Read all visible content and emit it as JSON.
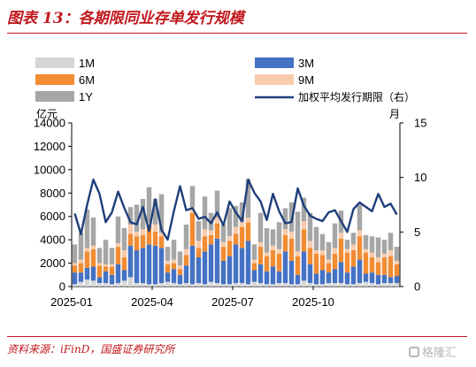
{
  "header": {
    "title": "图表 13：各期限同业存单发行规模"
  },
  "footer": {
    "source": "资料来源：iFinD，国盛证券研究所",
    "watermark": "格隆汇"
  },
  "colors": {
    "1M": "#d6d6d6",
    "3M": "#4472c4",
    "6M": "#f28c33",
    "9M": "#f8cbad",
    "1Y": "#a6a6a6",
    "line": "#1f3f7a",
    "title": "#c0171d"
  },
  "chart_data": {
    "type": "bar",
    "stacked": true,
    "left_axis_unit": "亿元",
    "right_axis_unit": "月",
    "ylim": [
      0,
      14000
    ],
    "ylim_right": [
      0,
      15
    ],
    "y_ticks": [
      "0",
      "2000",
      "4000",
      "6000",
      "8000",
      "10000",
      "12000",
      "14000"
    ],
    "y_right_ticks": [
      "0",
      "5",
      "10",
      "15"
    ],
    "x_tick_labels": [
      "2025-01",
      "2025-04",
      "2025-07",
      "2025-10"
    ],
    "x_tick_indices": [
      0,
      13,
      26,
      39
    ],
    "legend": [
      "1M",
      "3M",
      "6M",
      "9M",
      "1Y",
      "加权平均发行期限（右）"
    ],
    "grid": false,
    "series": [
      {
        "name": "1M",
        "values": [
          200,
          400,
          600,
          500,
          300,
          300,
          200,
          300,
          500,
          800,
          300,
          300,
          200,
          200,
          300,
          400,
          300,
          200,
          300,
          200,
          300,
          200,
          400,
          300,
          200,
          200,
          300,
          300,
          200,
          400,
          300,
          200,
          200,
          300,
          300,
          200,
          200,
          500,
          300,
          200,
          200,
          300,
          300,
          300,
          200,
          200,
          300,
          400,
          300,
          200,
          300,
          300,
          300
        ]
      },
      {
        "name": "3M",
        "values": [
          1000,
          800,
          1000,
          1200,
          500,
          1000,
          800,
          1600,
          900,
          2700,
          2800,
          3000,
          3400,
          3300,
          3000,
          800,
          1200,
          800,
          1500,
          3300,
          2200,
          2800,
          3200,
          3800,
          2000,
          2400,
          3300,
          3000,
          3700,
          1000,
          1600,
          1100,
          1500,
          1000,
          2700,
          2000,
          800,
          2500,
          1600,
          900,
          1200,
          900,
          1200,
          1800,
          1000,
          1500,
          2000,
          700,
          900,
          800,
          700,
          500,
          600
        ]
      },
      {
        "name": "6M",
        "values": [
          600,
          800,
          1400,
          1500,
          1000,
          400,
          700,
          1500,
          1100,
          1000,
          1200,
          1100,
          1600,
          1200,
          1000,
          700,
          500,
          500,
          900,
          2800,
          800,
          1300,
          800,
          1300,
          1200,
          1300,
          900,
          1800,
          1600,
          600,
          1500,
          1300,
          1400,
          1500,
          1400,
          1900,
          1600,
          1900,
          1400,
          1700,
          1300,
          800,
          1300,
          2000,
          1700,
          1400,
          2000,
          1800,
          1300,
          1100,
          1500,
          1800,
          1000
        ]
      },
      {
        "name": "9M",
        "values": [
          200,
          300,
          300,
          300,
          200,
          200,
          200,
          300,
          600,
          800,
          400,
          500,
          300,
          600,
          300,
          300,
          300,
          300,
          500,
          500,
          600,
          600,
          400,
          500,
          400,
          400,
          600,
          400,
          400,
          300,
          400,
          300,
          400,
          400,
          500,
          600,
          400,
          700,
          600,
          300,
          400,
          300,
          500,
          500,
          300,
          500,
          500,
          300,
          400,
          400,
          300,
          500,
          300
        ]
      },
      {
        "name": "1Y",
        "values": [
          1600,
          2300,
          3300,
          2400,
          1300,
          2100,
          1400,
          2300,
          1900,
          1500,
          2300,
          2600,
          3000,
          2200,
          3300,
          1200,
          1700,
          1200,
          2100,
          1800,
          1700,
          2800,
          1500,
          2300,
          1500,
          2400,
          1800,
          1700,
          3300,
          1300,
          2500,
          2100,
          1400,
          2300,
          1800,
          2500,
          3400,
          2000,
          2400,
          2000,
          1400,
          1500,
          2100,
          1900,
          800,
          1000,
          2200,
          1200,
          1400,
          1700,
          1200,
          1500,
          1200
        ]
      },
      {
        "name": "加权平均发行期限（右）",
        "axis": "right",
        "values": [
          6.7,
          4.8,
          7.5,
          9.8,
          8.5,
          5.9,
          6.8,
          8.7,
          7.2,
          5.9,
          5.7,
          7.3,
          5.1,
          8.0,
          5.2,
          4.3,
          6.9,
          9.2,
          7.0,
          7.2,
          6.2,
          6.4,
          5.8,
          6.8,
          5.6,
          7.8,
          6.8,
          6.0,
          9.8,
          8.6,
          7.8,
          6.1,
          8.5,
          6.9,
          5.8,
          5.9,
          9.0,
          7.4,
          6.5,
          6.2,
          6.0,
          6.8,
          7.0,
          6.0,
          5.0,
          7.1,
          7.7,
          7.3,
          6.9,
          8.5,
          7.3,
          7.6,
          6.6
        ]
      }
    ]
  }
}
